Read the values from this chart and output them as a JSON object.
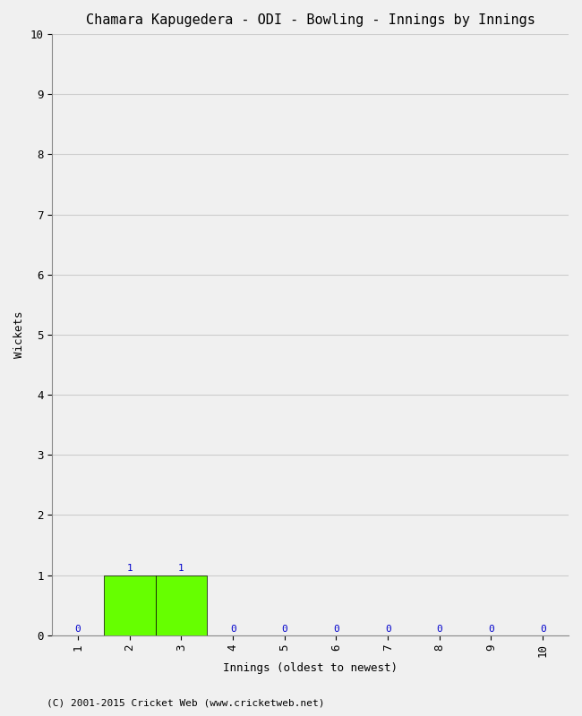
{
  "title": "Chamara Kapugedera - ODI - Bowling - Innings by Innings",
  "xlabel": "Innings (oldest to newest)",
  "ylabel": "Wickets",
  "background_color": "#f0f0f0",
  "plot_bg_color": "#f0f0f0",
  "bar_color": "#66ff00",
  "label_color": "#0000cc",
  "innings": [
    1,
    2,
    3,
    4,
    5,
    6,
    7,
    8,
    9,
    10
  ],
  "wickets": [
    0,
    1,
    1,
    0,
    0,
    0,
    0,
    0,
    0,
    0
  ],
  "ylim": [
    0,
    10
  ],
  "xlim": [
    0.5,
    10.5
  ],
  "yticks": [
    0,
    1,
    2,
    3,
    4,
    5,
    6,
    7,
    8,
    9,
    10
  ],
  "xticks": [
    1,
    2,
    3,
    4,
    5,
    6,
    7,
    8,
    9,
    10
  ],
  "title_fontsize": 11,
  "axis_label_fontsize": 9,
  "tick_fontsize": 9,
  "annotation_fontsize": 8,
  "footer": "(C) 2001-2015 Cricket Web (www.cricketweb.net)",
  "footer_fontsize": 8,
  "grid_color": "#cccccc"
}
